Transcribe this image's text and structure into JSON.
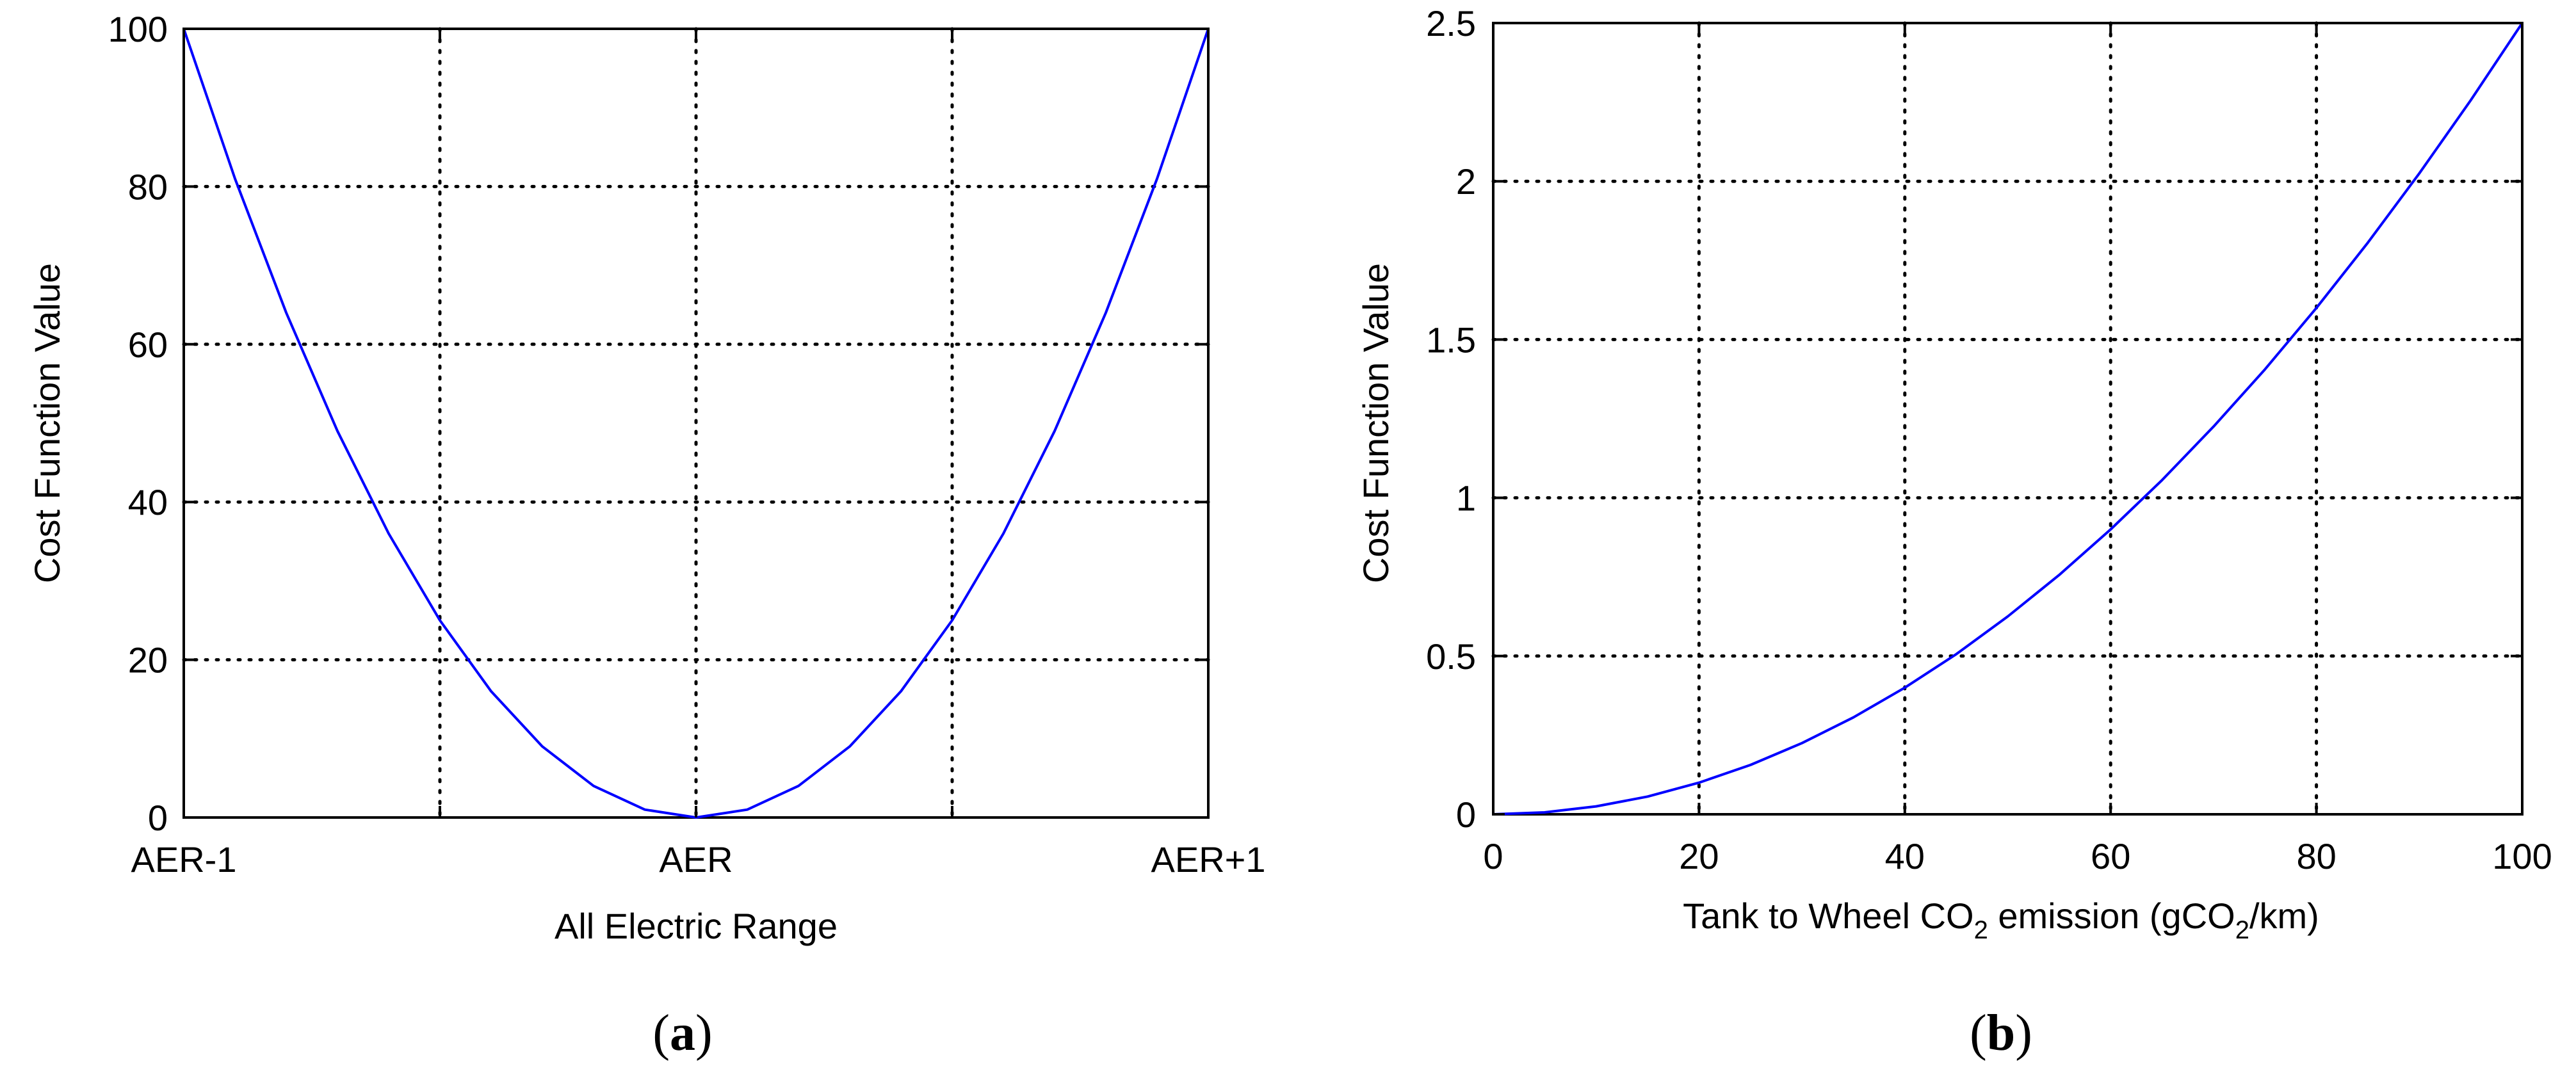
{
  "chart_data": [
    {
      "type": "line",
      "panel_label": "a",
      "xlabel": "All Electric Range",
      "ylabel": "Cost Function Value",
      "xlim": [
        -1,
        1
      ],
      "ylim": [
        0,
        100
      ],
      "x_ticks": [
        -1,
        -0.5,
        0,
        0.5,
        1
      ],
      "x_tick_labels": [
        "AER-1",
        "",
        "AER",
        "",
        "AER+1"
      ],
      "y_ticks": [
        0,
        20,
        40,
        60,
        80,
        100
      ],
      "y_tick_labels": [
        "0",
        "20",
        "40",
        "60",
        "80",
        "100"
      ],
      "grid": true,
      "series": [
        {
          "color": "#0000ff",
          "x": [
            -1,
            -0.9,
            -0.8,
            -0.7,
            -0.6,
            -0.5,
            -0.4,
            -0.3,
            -0.2,
            -0.1,
            0,
            0.1,
            0.2,
            0.3,
            0.4,
            0.5,
            0.6,
            0.7,
            0.8,
            0.9,
            1
          ],
          "y": [
            100,
            81,
            64,
            49,
            36,
            25,
            16,
            9,
            4,
            1,
            0,
            1,
            4,
            9,
            16,
            25,
            36,
            49,
            64,
            81,
            100
          ]
        }
      ]
    },
    {
      "type": "line",
      "panel_label": "b",
      "xlabel": "Tank to Wheel CO2 emission (gCO2/km)",
      "xlabel_parts": [
        {
          "t": "Tank to Wheel CO",
          "sub": false
        },
        {
          "t": "2",
          "sub": true
        },
        {
          "t": " emission (gCO",
          "sub": false
        },
        {
          "t": "2",
          "sub": true
        },
        {
          "t": "/km)",
          "sub": false
        }
      ],
      "ylabel": "Cost Function Value",
      "xlim": [
        0,
        100
      ],
      "ylim": [
        0,
        2.5
      ],
      "x_ticks": [
        0,
        20,
        40,
        60,
        80,
        100
      ],
      "x_tick_labels": [
        "0",
        "20",
        "40",
        "60",
        "80",
        "100"
      ],
      "y_ticks": [
        0,
        0.5,
        1,
        1.5,
        2,
        2.5
      ],
      "y_tick_labels": [
        "0",
        "0.5",
        "1",
        "1.5",
        "2",
        "2.5"
      ],
      "grid": true,
      "series": [
        {
          "color": "#0000ff",
          "x": [
            0,
            5,
            10,
            15,
            20,
            25,
            30,
            35,
            40,
            45,
            50,
            55,
            60,
            65,
            70,
            75,
            80,
            85,
            90,
            95,
            100
          ],
          "y": [
            0,
            0.006,
            0.025,
            0.056,
            0.1,
            0.156,
            0.225,
            0.306,
            0.4,
            0.506,
            0.625,
            0.756,
            0.9,
            1.056,
            1.225,
            1.406,
            1.6,
            1.806,
            2.025,
            2.256,
            2.5
          ]
        }
      ]
    }
  ]
}
